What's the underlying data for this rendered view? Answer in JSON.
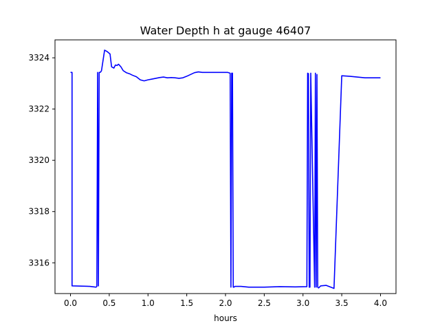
{
  "chart_data": {
    "type": "line",
    "title": "Water Depth h at gauge 46407",
    "xlabel": "hours",
    "ylabel": "",
    "xlim": [
      -0.2,
      4.2
    ],
    "ylim": [
      3314.8,
      3324.7
    ],
    "xticks": [
      0.0,
      0.5,
      1.0,
      1.5,
      2.0,
      2.5,
      3.0,
      3.5,
      4.0
    ],
    "xtick_labels": [
      "0.0",
      "0.5",
      "1.0",
      "1.5",
      "2.0",
      "2.5",
      "3.0",
      "3.5",
      "4.0"
    ],
    "yticks": [
      3316,
      3318,
      3320,
      3322,
      3324
    ],
    "ytick_labels": [
      "3316",
      "3318",
      "3320",
      "3322",
      "3324"
    ],
    "grid": false,
    "series": [
      {
        "color": "#0000ff",
        "x": [
          0.0,
          0.02,
          0.02,
          0.25,
          0.33,
          0.34,
          0.35,
          0.36,
          0.37,
          0.38,
          0.39,
          0.4,
          0.44,
          0.47,
          0.49,
          0.51,
          0.53,
          0.56,
          0.58,
          0.6,
          0.62,
          0.65,
          0.68,
          0.72,
          0.76,
          0.8,
          0.85,
          0.9,
          0.95,
          1.0,
          1.05,
          1.1,
          1.15,
          1.2,
          1.25,
          1.3,
          1.35,
          1.4,
          1.45,
          1.5,
          1.55,
          1.6,
          1.65,
          1.7,
          1.75,
          1.8,
          1.85,
          1.9,
          1.95,
          2.0,
          2.03,
          2.06,
          2.07,
          2.08,
          2.09,
          2.1,
          2.11,
          2.12,
          2.2,
          2.3,
          2.5,
          2.7,
          2.9,
          3.05,
          3.06,
          3.07,
          3.08,
          3.09,
          3.1,
          3.15,
          3.16,
          3.17,
          3.18,
          3.19,
          3.2,
          3.21,
          3.22,
          3.23,
          3.3,
          3.4,
          3.5,
          3.6,
          3.7,
          3.8,
          3.82,
          3.82,
          3.9,
          4.0
        ],
        "y": [
          3323.43,
          3323.43,
          3315.1,
          3315.08,
          3315.05,
          3315.08,
          3323.43,
          3315.1,
          3323.43,
          3323.43,
          3323.45,
          3323.5,
          3324.3,
          3324.25,
          3324.2,
          3324.15,
          3323.65,
          3323.6,
          3323.72,
          3323.7,
          3323.75,
          3323.65,
          3323.5,
          3323.42,
          3323.38,
          3323.32,
          3323.26,
          3323.14,
          3323.1,
          3323.14,
          3323.17,
          3323.2,
          3323.23,
          3323.25,
          3323.22,
          3323.23,
          3323.22,
          3323.2,
          3323.22,
          3323.28,
          3323.35,
          3323.42,
          3323.45,
          3323.43,
          3323.43,
          3323.43,
          3323.43,
          3323.43,
          3323.43,
          3323.43,
          3323.43,
          3323.4,
          3315.05,
          3323.4,
          3323.4,
          3315.05,
          3315.05,
          3315.08,
          3315.08,
          3315.05,
          3315.05,
          3315.07,
          3315.06,
          3315.07,
          3323.4,
          3323.38,
          3315.05,
          3315.05,
          3323.4,
          3315.05,
          3323.4,
          3315.05,
          3323.35,
          3315.05,
          3315.02,
          3315.04,
          3315.08,
          3315.1,
          3315.12,
          3315.0,
          3323.3,
          3323.28,
          3323.25,
          3323.22,
          3323.22,
          3323.22,
          3323.22,
          3323.22
        ]
      }
    ]
  }
}
